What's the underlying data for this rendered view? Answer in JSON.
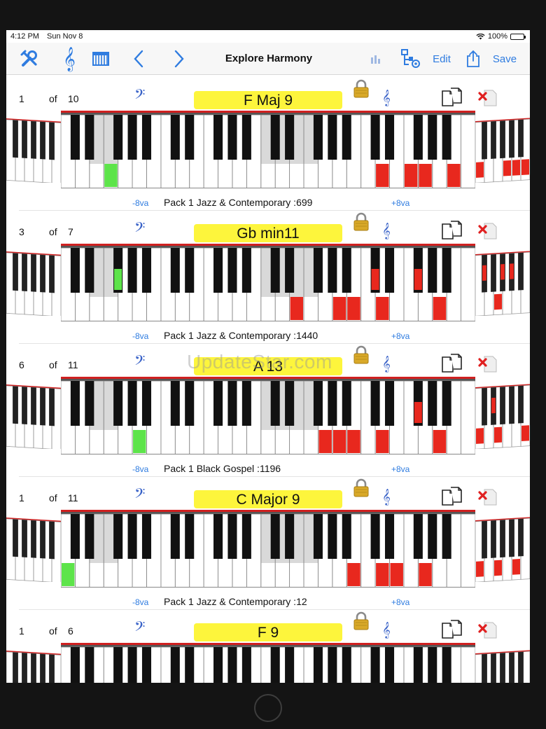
{
  "status": {
    "time": "4:12 PM",
    "date": "Sun Nov 8",
    "battery": "100%"
  },
  "toolbar": {
    "title": "Explore Harmony",
    "edit_label": "Edit",
    "save_label": "Save"
  },
  "watermark": "UpdateStar.com",
  "colors": {
    "highlight_red": "#e8281e",
    "highlight_green": "#5de44a",
    "chord_bg": "#fdf53c",
    "accent": "#2f7ce0"
  },
  "sections": [
    {
      "row": "1",
      "of": "of",
      "total": "10",
      "chord": "F Maj 9",
      "minus": "-8va",
      "plus": "+8va",
      "pack": "Pack 1 Jazz & Contemporary :699"
    },
    {
      "row": "3",
      "of": "of",
      "total": "7",
      "chord": "Gb min11",
      "minus": "-8va",
      "plus": "+8va",
      "pack": "Pack 1 Jazz & Contemporary :1440"
    },
    {
      "row": "6",
      "of": "of",
      "total": "11",
      "chord": "A 13",
      "minus": "-8va",
      "plus": "+8va",
      "pack": "Pack 1 Black Gospel :1196"
    },
    {
      "row": "1",
      "of": "of",
      "total": "11",
      "chord": "C Major 9",
      "minus": "-8va",
      "plus": "+8va",
      "pack": "Pack 1 Jazz & Contemporary :12"
    },
    {
      "row": "1",
      "of": "of",
      "total": "6",
      "chord": "F 9",
      "minus": "",
      "plus": "",
      "pack": ""
    }
  ]
}
